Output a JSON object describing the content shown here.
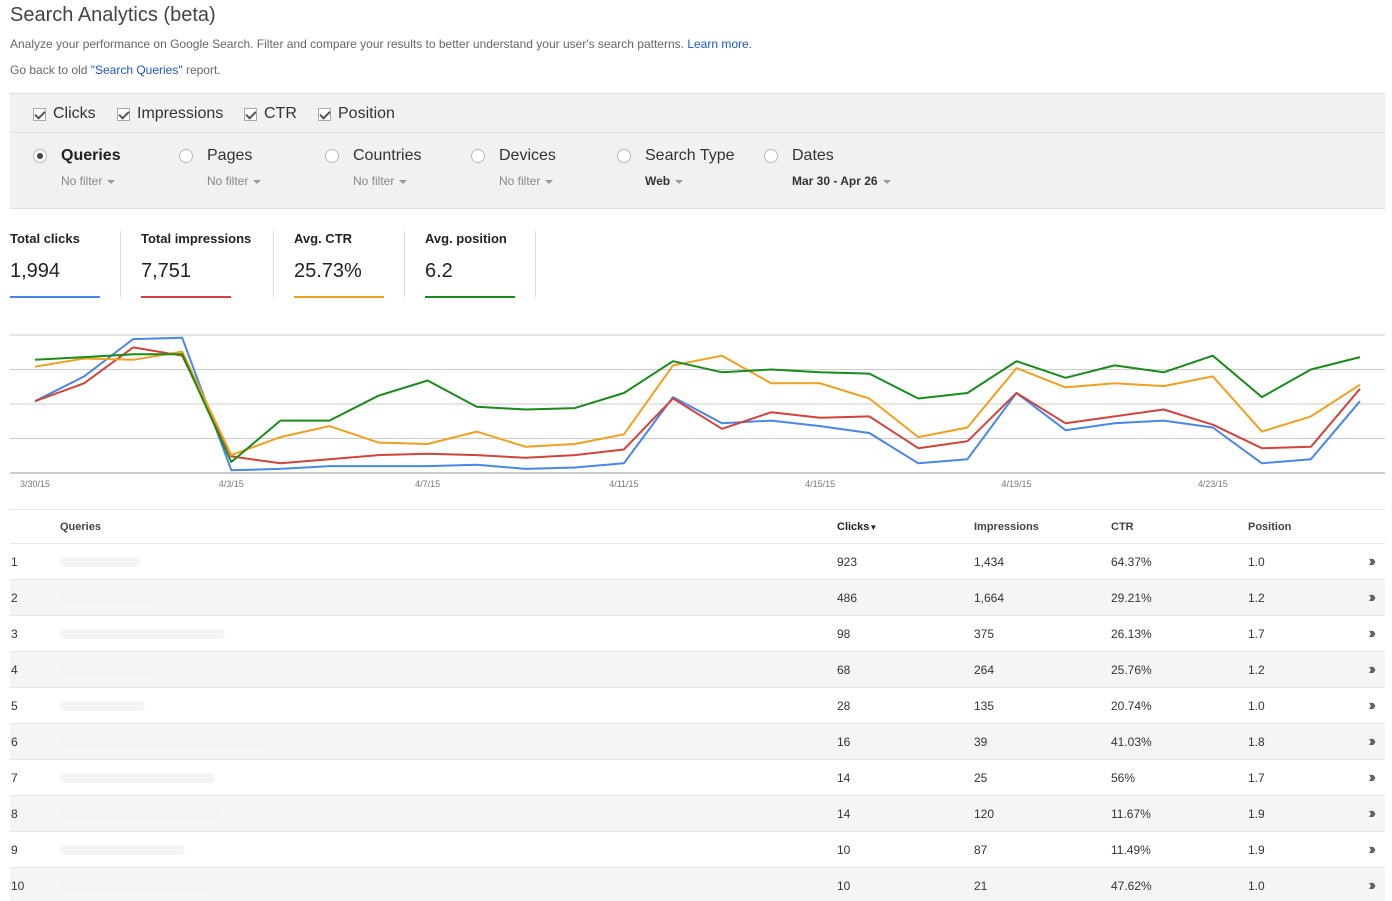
{
  "header": {
    "title": "Search Analytics (beta)",
    "description": "Analyze your performance on Google Search. Filter and compare your results to better understand your user's search patterns.",
    "learn_more": "Learn more.",
    "go_back_prefix": "Go back to old ",
    "go_back_link": "\"Search Queries\"",
    "go_back_suffix": " report."
  },
  "metrics": [
    {
      "label": "Clicks",
      "checked": true
    },
    {
      "label": "Impressions",
      "checked": true
    },
    {
      "label": "CTR",
      "checked": true
    },
    {
      "label": "Position",
      "checked": true
    }
  ],
  "dimensions": [
    {
      "label": "Queries",
      "filter": "No filter",
      "selected": true
    },
    {
      "label": "Pages",
      "filter": "No filter",
      "selected": false
    },
    {
      "label": "Countries",
      "filter": "No filter",
      "selected": false
    },
    {
      "label": "Devices",
      "filter": "No filter",
      "selected": false
    },
    {
      "label": "Search Type",
      "filter": "Web",
      "selected": false
    },
    {
      "label": "Dates",
      "filter": "Mar 30 - Apr 26",
      "selected": false
    }
  ],
  "summary": [
    {
      "label": "Total clicks",
      "value": "1,994",
      "color": "#4a86e8"
    },
    {
      "label": "Total impressions",
      "value": "7,751",
      "color": "#d2443b"
    },
    {
      "label": "Avg. CTR",
      "value": "25.73%",
      "color": "#f0a020"
    },
    {
      "label": "Avg. position",
      "value": "6.2",
      "color": "#1a8a1a"
    }
  ],
  "chart_data": {
    "type": "line",
    "x": [
      "3/30/15",
      "3/31/15",
      "4/1/15",
      "4/2/15",
      "4/3/15",
      "4/4/15",
      "4/5/15",
      "4/6/15",
      "4/7/15",
      "4/8/15",
      "4/9/15",
      "4/10/15",
      "4/11/15",
      "4/12/15",
      "4/13/15",
      "4/14/15",
      "4/15/15",
      "4/16/15",
      "4/17/15",
      "4/18/15",
      "4/19/15",
      "4/20/15",
      "4/21/15",
      "4/22/15",
      "4/23/15",
      "4/24/15",
      "4/25/15",
      "4/26/15"
    ],
    "tick_labels": [
      "3/30/15",
      "4/3/15",
      "4/7/15",
      "4/11/15",
      "4/15/15",
      "4/19/15",
      "4/23/15"
    ],
    "grid": true,
    "series": [
      {
        "color": "#4a86e8",
        "values": [
          0.52,
          0.7,
          0.97,
          0.98,
          0.02,
          0.03,
          0.05,
          0.05,
          0.05,
          0.06,
          0.03,
          0.04,
          0.07,
          0.55,
          0.36,
          0.38,
          0.34,
          0.29,
          0.07,
          0.1,
          0.58,
          0.31,
          0.36,
          0.38,
          0.33,
          0.07,
          0.1,
          0.52
        ]
      },
      {
        "color": "#d2443b",
        "values": [
          0.52,
          0.65,
          0.91,
          0.85,
          0.12,
          0.07,
          0.1,
          0.13,
          0.14,
          0.13,
          0.11,
          0.13,
          0.17,
          0.54,
          0.32,
          0.44,
          0.4,
          0.41,
          0.18,
          0.23,
          0.58,
          0.36,
          0.41,
          0.46,
          0.35,
          0.18,
          0.19,
          0.61
        ]
      },
      {
        "color": "#f0a020",
        "values": [
          0.77,
          0.83,
          0.82,
          0.88,
          0.13,
          0.26,
          0.34,
          0.22,
          0.21,
          0.3,
          0.19,
          0.21,
          0.28,
          0.78,
          0.85,
          0.65,
          0.65,
          0.54,
          0.26,
          0.33,
          0.76,
          0.62,
          0.65,
          0.63,
          0.7,
          0.3,
          0.41,
          0.64
        ]
      },
      {
        "color": "#1a8a1a",
        "values": [
          0.82,
          0.84,
          0.86,
          0.86,
          0.08,
          0.38,
          0.38,
          0.56,
          0.67,
          0.48,
          0.46,
          0.47,
          0.58,
          0.81,
          0.73,
          0.75,
          0.73,
          0.72,
          0.54,
          0.58,
          0.81,
          0.69,
          0.78,
          0.73,
          0.85,
          0.55,
          0.75,
          0.84
        ]
      }
    ]
  },
  "table": {
    "headers": {
      "queries": "Queries",
      "clicks": "Clicks",
      "impressions": "Impressions",
      "ctr": "CTR",
      "position": "Position"
    },
    "rows": [
      {
        "idx": "1",
        "clicks": "923",
        "impressions": "1,434",
        "ctr": "64.37%",
        "position": "1.0"
      },
      {
        "idx": "2",
        "clicks": "486",
        "impressions": "1,664",
        "ctr": "29.21%",
        "position": "1.2"
      },
      {
        "idx": "3",
        "clicks": "98",
        "impressions": "375",
        "ctr": "26.13%",
        "position": "1.7"
      },
      {
        "idx": "4",
        "clicks": "68",
        "impressions": "264",
        "ctr": "25.76%",
        "position": "1.2"
      },
      {
        "idx": "5",
        "clicks": "28",
        "impressions": "135",
        "ctr": "20.74%",
        "position": "1.0"
      },
      {
        "idx": "6",
        "clicks": "16",
        "impressions": "39",
        "ctr": "41.03%",
        "position": "1.8"
      },
      {
        "idx": "7",
        "clicks": "14",
        "impressions": "25",
        "ctr": "56%",
        "position": "1.7"
      },
      {
        "idx": "8",
        "clicks": "14",
        "impressions": "120",
        "ctr": "11.67%",
        "position": "1.9"
      },
      {
        "idx": "9",
        "clicks": "10",
        "impressions": "87",
        "ctr": "11.49%",
        "position": "1.9"
      },
      {
        "idx": "10",
        "clicks": "10",
        "impressions": "21",
        "ctr": "47.62%",
        "position": "1.0"
      }
    ]
  },
  "icons": {
    "sort": "sort-desc-icon",
    "row_action": "double-chevron-right-icon"
  }
}
